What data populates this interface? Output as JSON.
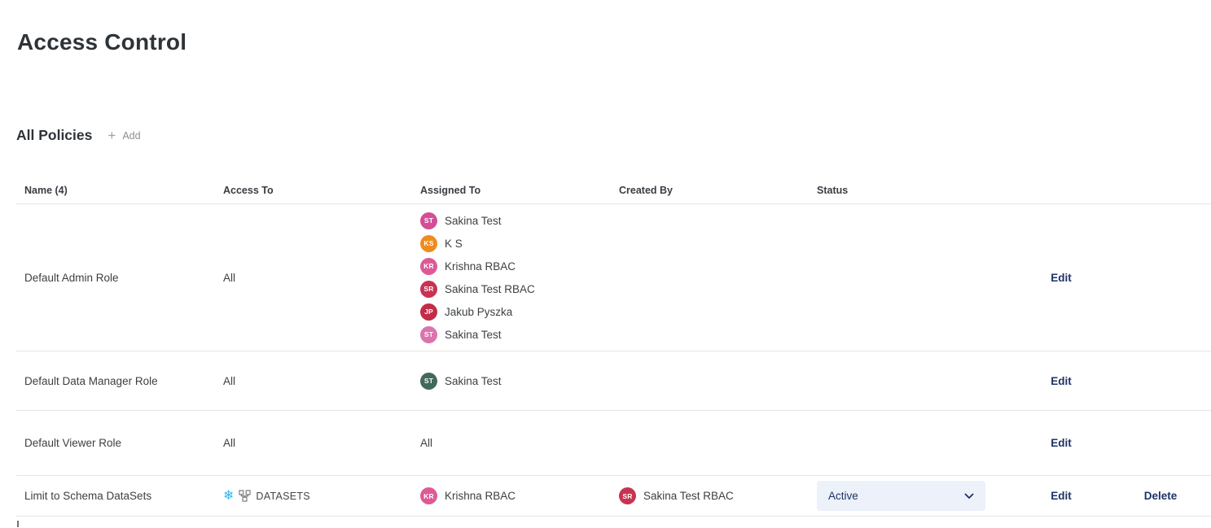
{
  "page_title": "Access Control",
  "policies_section": {
    "heading": "All Policies",
    "add_button": {
      "plus": "+",
      "label": "Add"
    }
  },
  "colors": {
    "action_link": "#1d3266",
    "snowflake_blue": "#2bb5e8",
    "select_bg": "#edf1f9",
    "select_text": "#1d3266"
  },
  "table": {
    "columns": [
      "Name (4)",
      "Access To",
      "Assigned To",
      "Created By",
      "Status"
    ],
    "rows": [
      {
        "name": "Default Admin Role",
        "access_to": {
          "kind": "text",
          "text": "All"
        },
        "assigned_to": {
          "kind": "users",
          "users": [
            {
              "initials": "ST",
              "name": "Sakina Test",
              "color": "#d44e96"
            },
            {
              "initials": "KS",
              "name": "K S",
              "color": "#ee8b21"
            },
            {
              "initials": "KR",
              "name": "Krishna RBAC",
              "color": "#dd5a96"
            },
            {
              "initials": "SR",
              "name": "Sakina Test RBAC",
              "color": "#c93251"
            },
            {
              "initials": "JP",
              "name": "Jakub Pyszka",
              "color": "#c22c47"
            },
            {
              "initials": "ST",
              "name": "Sakina Test",
              "color": "#db74ad"
            }
          ]
        },
        "created_by": null,
        "status": null,
        "actions": [
          {
            "label": "Edit"
          }
        ]
      },
      {
        "name": "Default Data Manager Role",
        "access_to": {
          "kind": "text",
          "text": "All"
        },
        "assigned_to": {
          "kind": "users",
          "users": [
            {
              "initials": "ST",
              "name": "Sakina Test",
              "color": "#41695c"
            }
          ]
        },
        "created_by": null,
        "status": null,
        "actions": [
          {
            "label": "Edit"
          }
        ]
      },
      {
        "name": "Default Viewer Role",
        "access_to": {
          "kind": "text",
          "text": "All"
        },
        "assigned_to": {
          "kind": "text",
          "text": "All"
        },
        "created_by": null,
        "status": null,
        "actions": [
          {
            "label": "Edit"
          }
        ]
      },
      {
        "name": "Limit to Schema DataSets",
        "access_to": {
          "kind": "dataset",
          "label": "DATASETS",
          "icons": [
            "snowflake-icon",
            "schema-icon"
          ]
        },
        "assigned_to": {
          "kind": "users",
          "users": [
            {
              "initials": "KR",
              "name": "Krishna RBAC",
              "color": "#dd5a96"
            }
          ]
        },
        "created_by": {
          "initials": "SR",
          "name": "Sakina Test RBAC",
          "color": "#c93251"
        },
        "status": {
          "kind": "select",
          "value": "Active"
        },
        "actions": [
          {
            "label": "Edit"
          },
          {
            "label": "Delete"
          }
        ]
      }
    ]
  }
}
